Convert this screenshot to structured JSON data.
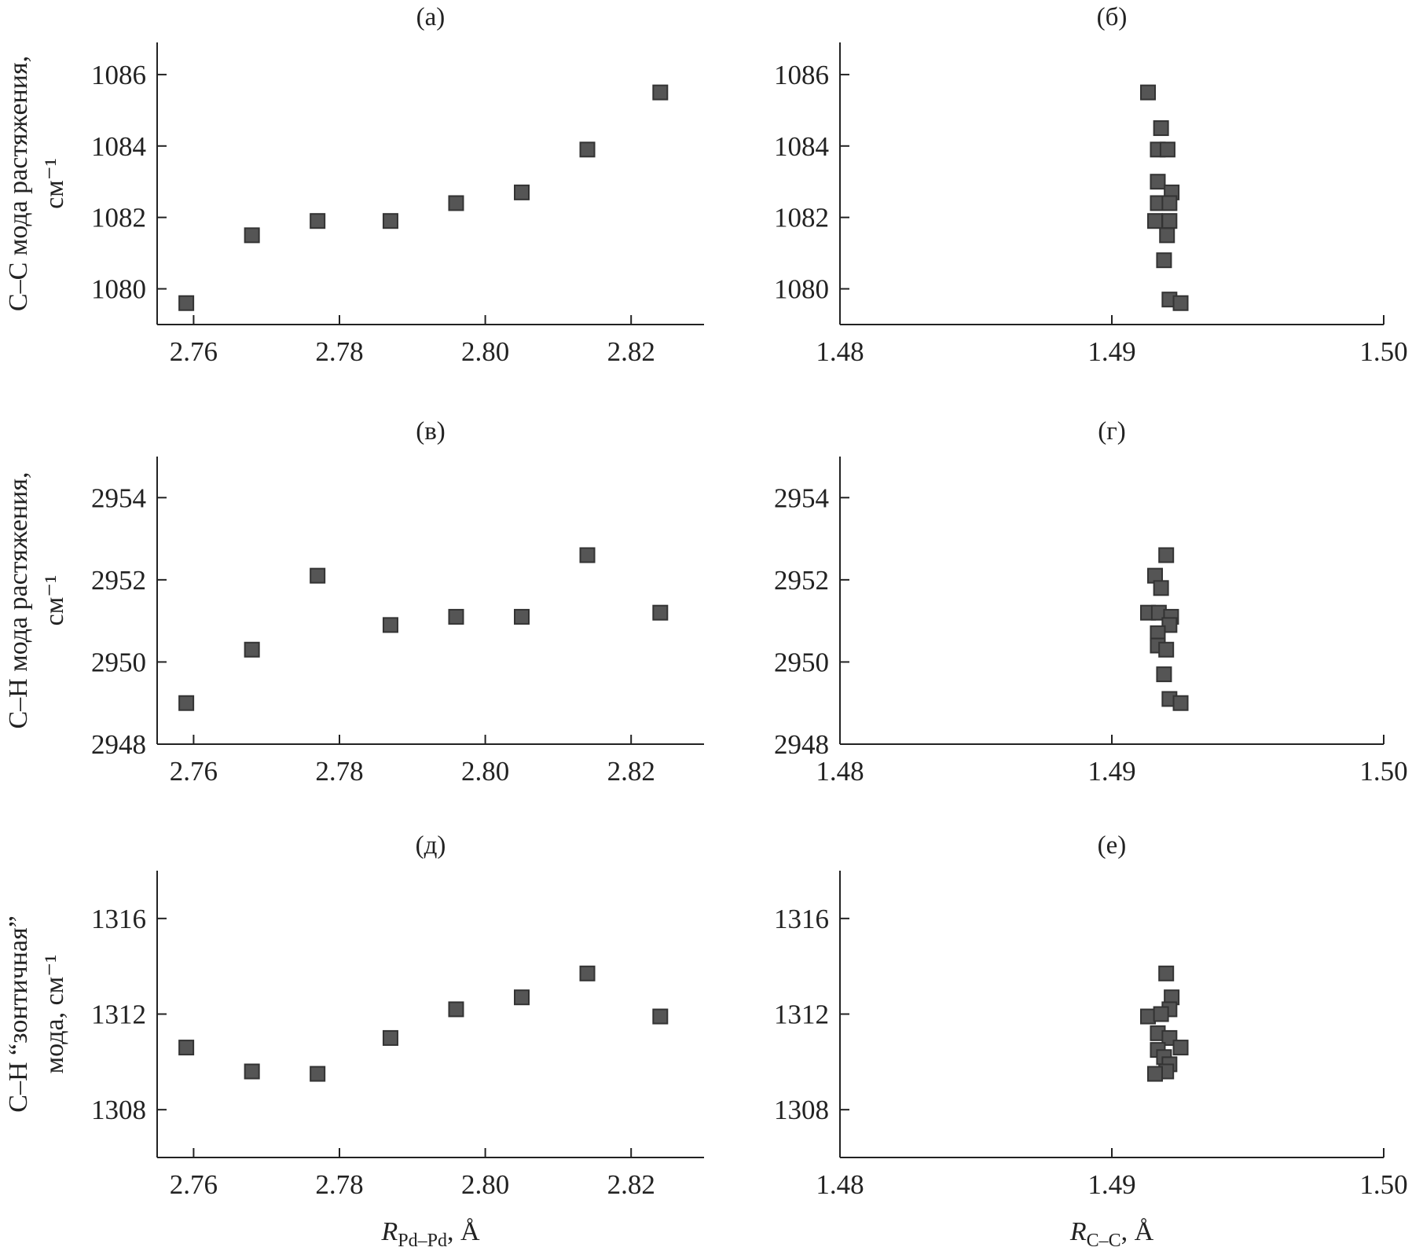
{
  "chart_data": [
    {
      "panel": "(а)",
      "type": "scatter",
      "title": "(а)",
      "ylabel": [
        "C–C мода растяжения,",
        "см⁻¹"
      ],
      "xlabel": "",
      "xlim": [
        2.755,
        2.83
      ],
      "ylim": [
        1079.0,
        1086.9
      ],
      "xticks": [
        2.76,
        2.78,
        2.8,
        2.82
      ],
      "xtick_labels": [
        "2.76",
        "2.78",
        "2.80",
        "2.82"
      ],
      "yticks": [
        1080,
        1082,
        1084,
        1086
      ],
      "ytick_labels": [
        "1080",
        "1082",
        "1084",
        "1086"
      ],
      "x": [
        2.759,
        2.768,
        2.777,
        2.787,
        2.796,
        2.805,
        2.814,
        2.824
      ],
      "y": [
        1079.6,
        1081.5,
        1081.9,
        1081.9,
        1082.4,
        1082.7,
        1083.9,
        1085.5
      ]
    },
    {
      "panel": "(б)",
      "type": "scatter",
      "title": "(б)",
      "ylabel": null,
      "xlabel": "",
      "xlim": [
        1.48,
        1.5
      ],
      "ylim": [
        1079.0,
        1086.9
      ],
      "xticks": [
        1.48,
        1.49,
        1.5
      ],
      "xtick_labels": [
        "1.48",
        "1.49",
        "1.50"
      ],
      "yticks": [
        1080,
        1082,
        1084,
        1086
      ],
      "ytick_labels": [
        "1080",
        "1082",
        "1084",
        "1086"
      ],
      "x": [
        1.49133,
        1.49181,
        1.49169,
        1.49205,
        1.49169,
        1.4922,
        1.49169,
        1.49212,
        1.49159,
        1.49212,
        1.49203,
        1.49192,
        1.49212,
        1.49253
      ],
      "y": [
        1085.5,
        1084.5,
        1083.9,
        1083.9,
        1083.0,
        1082.7,
        1082.4,
        1082.4,
        1081.9,
        1081.9,
        1081.5,
        1080.8,
        1079.7,
        1079.6
      ]
    },
    {
      "panel": "(в)",
      "type": "scatter",
      "title": "(в)",
      "ylabel": [
        "C–H мода растяжения,",
        "см⁻¹"
      ],
      "xlabel": "",
      "xlim": [
        2.755,
        2.83
      ],
      "ylim": [
        2948,
        2955
      ],
      "xticks": [
        2.76,
        2.78,
        2.8,
        2.82
      ],
      "xtick_labels": [
        "2.76",
        "2.78",
        "2.80",
        "2.82"
      ],
      "yticks": [
        2948,
        2950,
        2952,
        2954
      ],
      "ytick_labels": [
        "2948",
        "2950",
        "2952",
        "2954"
      ],
      "x": [
        2.759,
        2.768,
        2.777,
        2.787,
        2.796,
        2.805,
        2.814,
        2.824
      ],
      "y": [
        2949.0,
        2950.3,
        2952.1,
        2950.9,
        2951.1,
        2951.1,
        2952.6,
        2951.2
      ]
    },
    {
      "panel": "(г)",
      "type": "scatter",
      "title": "(г)",
      "ylabel": null,
      "xlabel": "",
      "xlim": [
        1.48,
        1.5
      ],
      "ylim": [
        2948,
        2955
      ],
      "xticks": [
        1.48,
        1.49,
        1.5
      ],
      "xtick_labels": [
        "1.48",
        "1.49",
        "1.50"
      ],
      "yticks": [
        2948,
        2950,
        2952,
        2954
      ],
      "ytick_labels": [
        "2948",
        "2950",
        "2952",
        "2954"
      ],
      "x": [
        1.492,
        1.49159,
        1.49181,
        1.49133,
        1.49173,
        1.49218,
        1.49212,
        1.49169,
        1.49169,
        1.492,
        1.49192,
        1.49212,
        1.49253
      ],
      "y": [
        2952.6,
        2952.1,
        2951.8,
        2951.2,
        2951.2,
        2951.1,
        2950.9,
        2950.7,
        2950.4,
        2950.3,
        2949.7,
        2949.1,
        2949.0
      ]
    },
    {
      "panel": "(д)",
      "type": "scatter",
      "title": "(д)",
      "ylabel": [
        "C–H “зонтичная”",
        "мода, см⁻¹"
      ],
      "xlabel": "R_Pd–Pd, Å",
      "xlabel_main": "R",
      "xlabel_sub": "Pd–Pd",
      "xlabel_unit": ", Å",
      "xlim": [
        2.755,
        2.83
      ],
      "ylim": [
        1306,
        1318
      ],
      "xticks": [
        2.76,
        2.78,
        2.8,
        2.82
      ],
      "xtick_labels": [
        "2.76",
        "2.78",
        "2.80",
        "2.82"
      ],
      "yticks": [
        1308,
        1312,
        1316
      ],
      "ytick_labels": [
        "1308",
        "1312",
        "1316"
      ],
      "x": [
        2.759,
        2.768,
        2.777,
        2.787,
        2.796,
        2.805,
        2.814,
        2.824
      ],
      "y": [
        1310.6,
        1309.6,
        1309.5,
        1311.0,
        1312.2,
        1312.7,
        1313.7,
        1311.9
      ]
    },
    {
      "panel": "(е)",
      "type": "scatter",
      "title": "(е)",
      "ylabel": null,
      "xlabel": "R_C–C, Å",
      "xlabel_main": "R",
      "xlabel_sub": "C–C",
      "xlabel_unit": ", Å",
      "xlim": [
        1.48,
        1.5
      ],
      "ylim": [
        1306,
        1318
      ],
      "xticks": [
        1.48,
        1.49,
        1.5
      ],
      "xtick_labels": [
        "1.48",
        "1.49",
        "1.50"
      ],
      "yticks": [
        1308,
        1312,
        1316
      ],
      "ytick_labels": [
        "1308",
        "1312",
        "1316"
      ],
      "x": [
        1.492,
        1.4922,
        1.49212,
        1.49133,
        1.49181,
        1.49169,
        1.49212,
        1.49253,
        1.49169,
        1.49192,
        1.49212,
        1.492,
        1.49159
      ],
      "y": [
        1313.7,
        1312.7,
        1312.2,
        1311.9,
        1312.0,
        1311.2,
        1311.0,
        1310.6,
        1310.5,
        1310.2,
        1309.9,
        1309.6,
        1309.5
      ]
    }
  ],
  "style": {
    "marker_fill": "#555555",
    "marker_stroke": "#333333",
    "axis_color": "#222222"
  }
}
